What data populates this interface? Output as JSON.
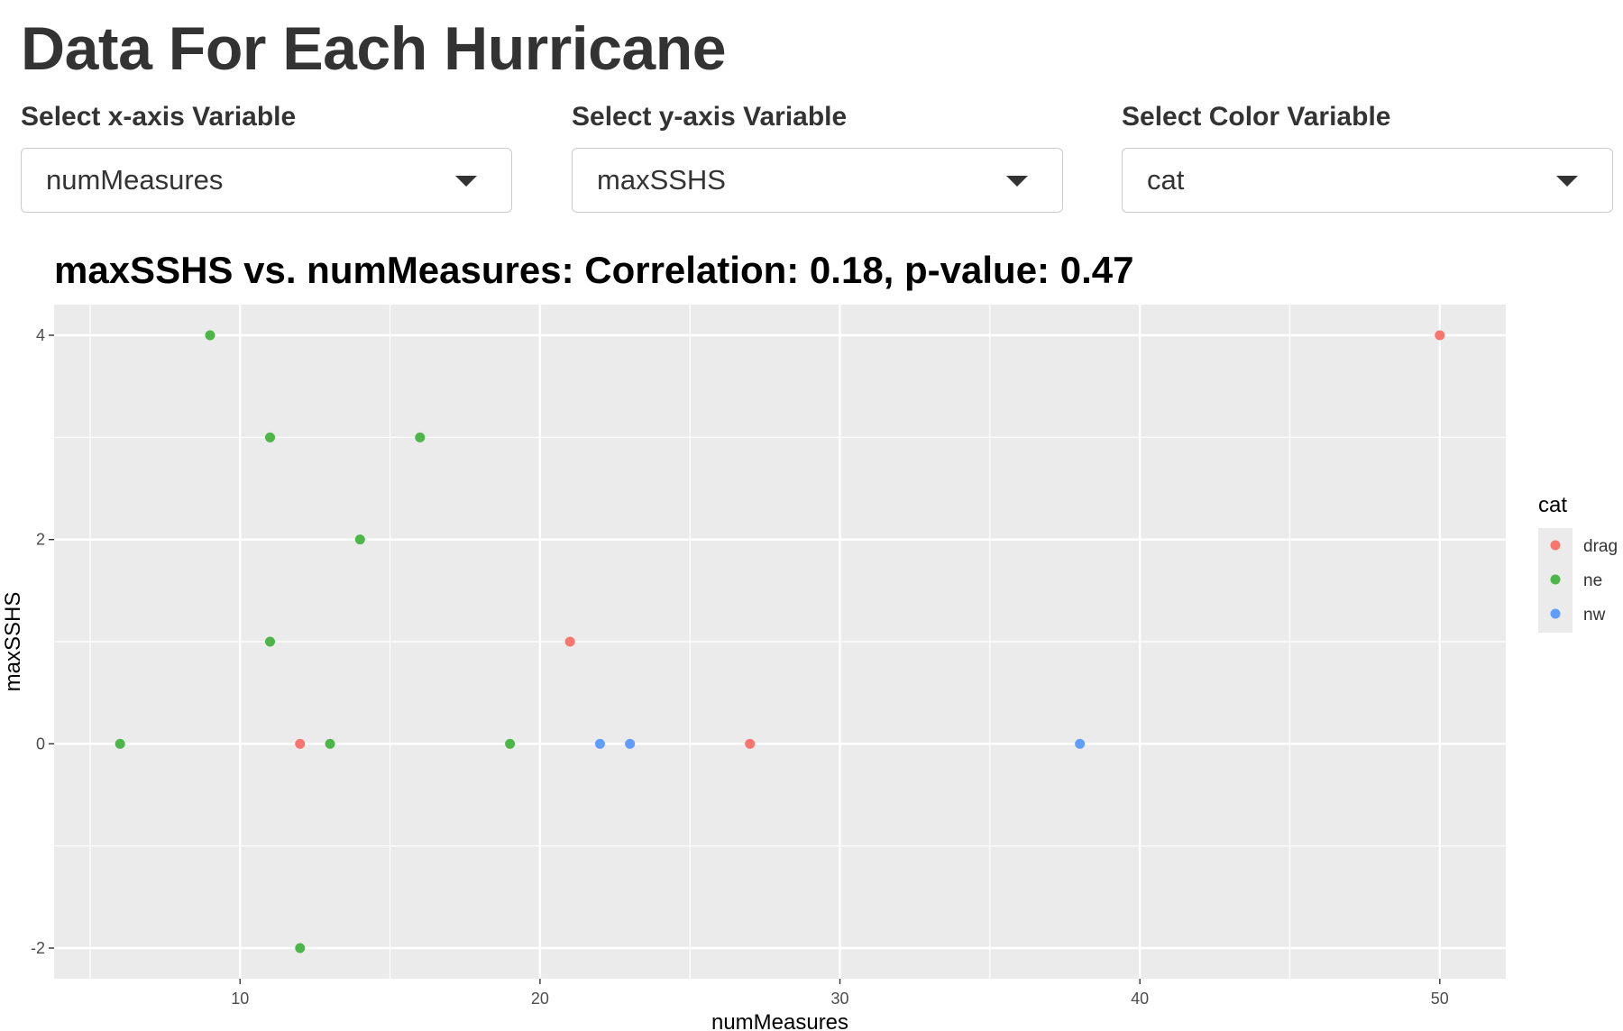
{
  "page": {
    "title": "Data For Each Hurricane"
  },
  "controls": {
    "x": {
      "label": "Select x-axis Variable",
      "value": "numMeasures"
    },
    "y": {
      "label": "Select y-axis Variable",
      "value": "maxSSHS"
    },
    "color": {
      "label": "Select Color Variable",
      "value": "cat"
    }
  },
  "chart_data": {
    "type": "scatter",
    "title": "maxSSHS vs. numMeasures: Correlation: 0.18, p-value: 0.47",
    "xlabel": "numMeasures",
    "ylabel": "maxSSHS",
    "xlim": [
      3.8,
      52.2
    ],
    "ylim": [
      -2.3,
      4.3
    ],
    "x_ticks": [
      10,
      20,
      30,
      40,
      50
    ],
    "y_ticks": [
      -2,
      0,
      2,
      4
    ],
    "grid": true,
    "legend": {
      "title": "cat",
      "position": "right"
    },
    "series": [
      {
        "name": "drag",
        "color": "#F8766D",
        "points": [
          [
            12,
            0
          ],
          [
            21,
            1
          ],
          [
            27,
            0
          ],
          [
            50,
            4
          ]
        ]
      },
      {
        "name": "ne",
        "color": "#4CB648",
        "points": [
          [
            6,
            0
          ],
          [
            9,
            4
          ],
          [
            11,
            3
          ],
          [
            11,
            1
          ],
          [
            12,
            -2
          ],
          [
            13,
            0
          ],
          [
            14,
            2
          ],
          [
            16,
            3
          ],
          [
            19,
            0
          ]
        ]
      },
      {
        "name": "nw",
        "color": "#619CFF",
        "points": [
          [
            22,
            0
          ],
          [
            23,
            0
          ],
          [
            38,
            0
          ]
        ]
      }
    ]
  }
}
